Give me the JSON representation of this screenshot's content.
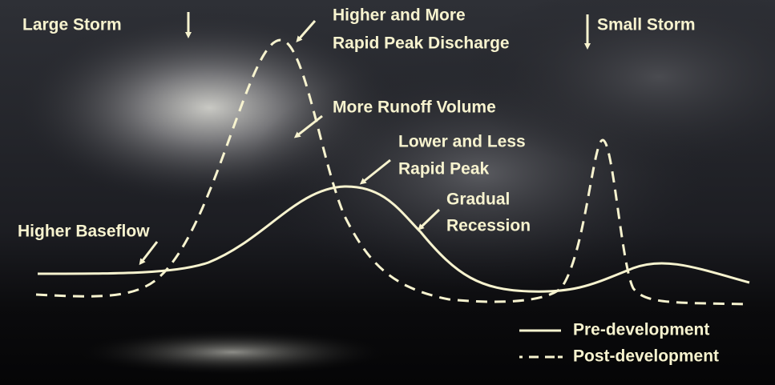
{
  "annotations": {
    "large_storm": "Large Storm",
    "higher_peak": [
      "Higher and More",
      "Rapid Peak Discharge"
    ],
    "small_storm": "Small Storm",
    "runoff_volume": "More Runoff Volume",
    "lower_peak": [
      "Lower and Less",
      "Rapid Peak"
    ],
    "recession": [
      "Gradual",
      "Recession"
    ],
    "baseflow": "Higher Baseflow"
  },
  "legend": [
    "Pre-development",
    "Post-development"
  ]
}
